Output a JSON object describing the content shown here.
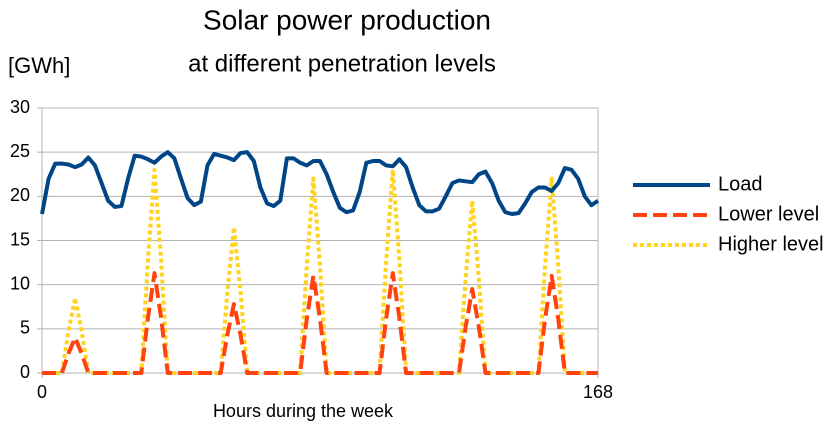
{
  "chart_data": {
    "type": "line",
    "title": "Solar power production",
    "subtitle": "at different penetration levels",
    "y_label": "[GWh]",
    "x_label": "Hours during the week",
    "x": [
      0,
      2,
      4,
      6,
      8,
      10,
      12,
      14,
      16,
      18,
      20,
      22,
      24,
      26,
      28,
      30,
      32,
      34,
      36,
      38,
      40,
      42,
      44,
      46,
      48,
      50,
      52,
      54,
      56,
      58,
      60,
      62,
      64,
      66,
      68,
      70,
      72,
      74,
      76,
      78,
      80,
      82,
      84,
      86,
      88,
      90,
      92,
      94,
      96,
      98,
      100,
      102,
      104,
      106,
      108,
      110,
      112,
      114,
      116,
      118,
      120,
      122,
      124,
      126,
      128,
      130,
      132,
      134,
      136,
      138,
      140,
      142,
      144,
      146,
      148,
      150,
      152,
      154,
      156,
      158,
      160,
      162,
      164,
      166,
      168
    ],
    "series": [
      {
        "name": "Load",
        "color": "#004586",
        "style": "solid",
        "values": [
          18,
          22,
          23.7,
          23.7,
          23.6,
          23.3,
          23.6,
          24.4,
          23.5,
          21.5,
          19.5,
          18.8,
          18.9,
          22,
          24.6,
          24.5,
          24.2,
          23.8,
          24.5,
          25,
          24.3,
          22,
          19.8,
          19,
          19.4,
          23.5,
          24.8,
          24.6,
          24.4,
          24.1,
          24.9,
          25,
          24,
          21,
          19.2,
          18.9,
          19.5,
          24.3,
          24.3,
          23.8,
          23.5,
          24,
          24,
          22.5,
          20.5,
          18.7,
          18.2,
          18.4,
          20.5,
          23.8,
          24,
          24,
          23.5,
          23.4,
          24.2,
          23.3,
          21,
          19,
          18.3,
          18.3,
          18.6,
          20,
          21.5,
          21.8,
          21.7,
          21.6,
          22.5,
          22.8,
          21.5,
          19.5,
          18.2,
          18,
          18.1,
          19.2,
          20.5,
          21,
          21,
          20.6,
          21.5,
          23.2,
          23,
          22,
          20,
          19,
          19.5
        ]
      },
      {
        "name": "Lower level",
        "color": "#ff420e",
        "style": "dashed",
        "values": [
          0,
          0,
          0,
          0,
          2.2,
          4,
          2.2,
          0,
          0,
          0,
          0,
          0,
          0,
          0,
          0,
          0,
          6.2,
          11.3,
          6.2,
          0,
          0,
          0,
          0,
          0,
          0,
          0,
          0,
          0,
          4.3,
          7.8,
          4.3,
          0,
          0,
          0,
          0,
          0,
          0,
          0,
          0,
          0,
          6.1,
          11,
          6.1,
          0,
          0,
          0,
          0,
          0,
          0,
          0,
          0,
          0,
          6.2,
          11.3,
          6.2,
          0,
          0,
          0,
          0,
          0,
          0,
          0,
          0,
          0,
          5.2,
          9.5,
          5.2,
          0,
          0,
          0,
          0,
          0,
          0,
          0,
          0,
          0,
          6.1,
          11,
          6.1,
          0,
          0,
          0,
          0,
          0,
          0
        ]
      },
      {
        "name": "Higher level",
        "color": "#ffd320",
        "style": "dotted",
        "values": [
          0,
          0,
          0,
          0,
          4.7,
          8.5,
          4.7,
          0,
          0,
          0,
          0,
          0,
          0,
          0,
          0,
          0,
          12.7,
          23,
          12.7,
          0,
          0,
          0,
          0,
          0,
          0,
          0,
          0,
          0,
          9.1,
          16.5,
          9.1,
          0,
          0,
          0,
          0,
          0,
          0,
          0,
          0,
          0,
          12.1,
          22,
          12.1,
          0,
          0,
          0,
          0,
          0,
          0,
          0,
          0,
          0,
          12.7,
          23,
          12.7,
          0,
          0,
          0,
          0,
          0,
          0,
          0,
          0,
          0,
          10.7,
          19.5,
          10.7,
          0,
          0,
          0,
          0,
          0,
          0,
          0,
          0,
          0,
          12.1,
          22,
          12.1,
          0,
          0,
          0,
          0,
          0,
          0
        ]
      }
    ],
    "xlim": [
      0,
      168
    ],
    "xticks": [
      0,
      168
    ],
    "ylim": [
      0,
      30
    ],
    "yticks": [
      0,
      5,
      10,
      15,
      20,
      25,
      30
    ],
    "grid": true,
    "legend": "right"
  }
}
